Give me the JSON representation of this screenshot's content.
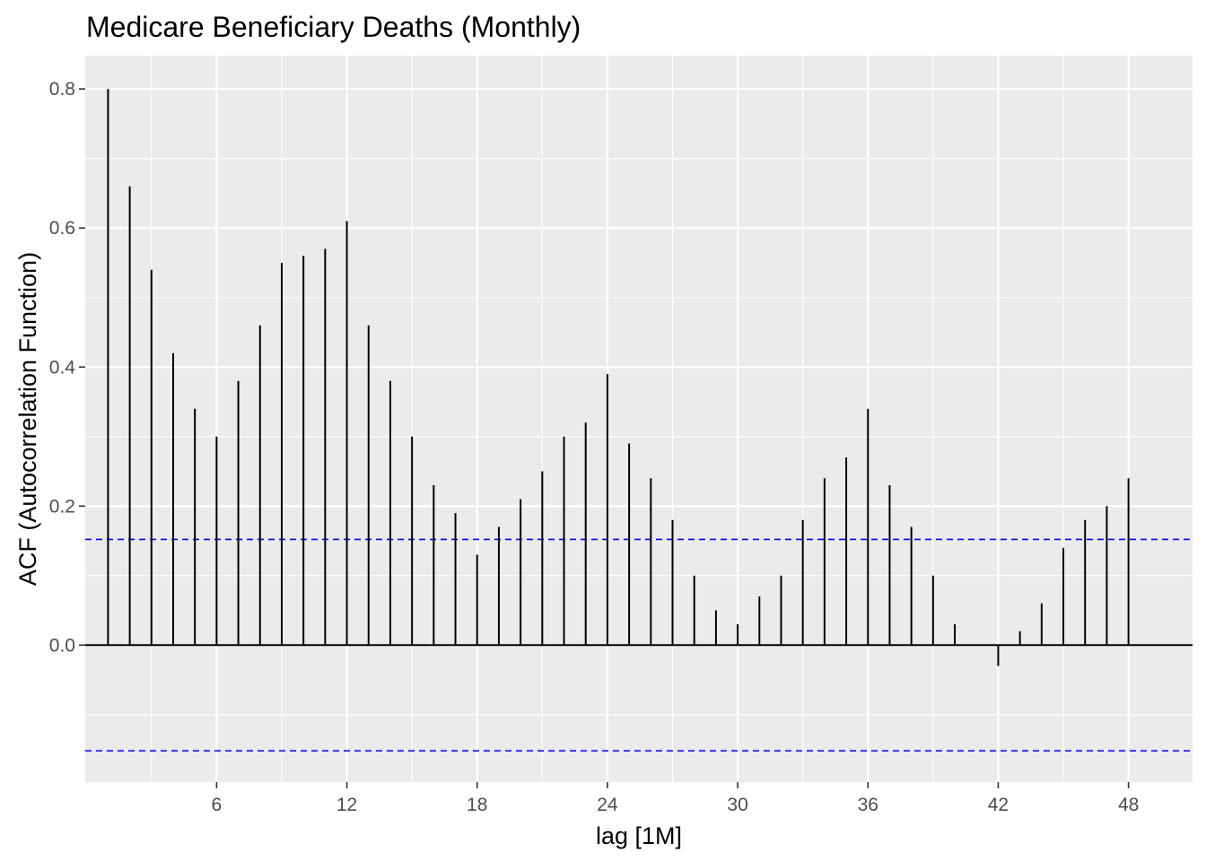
{
  "chart_data": {
    "type": "bar",
    "subtype": "acf-lollipop",
    "title": "Medicare Beneficiary Deaths (Monthly)",
    "xlabel": "lag [1M]",
    "ylabel": "ACF (Autocorrelation Function)",
    "x": [
      1,
      2,
      3,
      4,
      5,
      6,
      7,
      8,
      9,
      10,
      11,
      12,
      13,
      14,
      15,
      16,
      17,
      18,
      19,
      20,
      21,
      22,
      23,
      24,
      25,
      26,
      27,
      28,
      29,
      30,
      31,
      32,
      33,
      34,
      35,
      36,
      37,
      38,
      39,
      40,
      41,
      42,
      43,
      44,
      45,
      46,
      47,
      48
    ],
    "values": [
      0.8,
      0.66,
      0.54,
      0.42,
      0.34,
      0.3,
      0.38,
      0.46,
      0.55,
      0.56,
      0.57,
      0.61,
      0.46,
      0.38,
      0.3,
      0.23,
      0.19,
      0.13,
      0.17,
      0.21,
      0.25,
      0.3,
      0.32,
      0.39,
      0.29,
      0.24,
      0.18,
      0.1,
      0.05,
      0.03,
      0.07,
      0.1,
      0.18,
      0.24,
      0.27,
      0.34,
      0.23,
      0.17,
      0.1,
      0.03,
      0.0,
      -0.03,
      0.02,
      0.06,
      0.14,
      0.18,
      0.2,
      0.24
    ],
    "confidence_bounds": [
      0.152,
      -0.152
    ],
    "xlim": [
      -0.05,
      50.95
    ],
    "ylim": [
      -0.197,
      0.848
    ],
    "x_ticks": [
      6,
      12,
      18,
      24,
      30,
      36,
      42,
      48
    ],
    "y_ticks": [
      0.0,
      0.2,
      0.4,
      0.6,
      0.8
    ],
    "y_tick_labels": [
      "0.0",
      "0.2",
      "0.4",
      "0.6",
      "0.8"
    ],
    "grid": true,
    "colors": {
      "panel_background": "#ebebeb",
      "grid": "#ffffff",
      "bars": "#000000",
      "zero_line": "#000000",
      "confidence_lines": "#0000ff"
    }
  }
}
